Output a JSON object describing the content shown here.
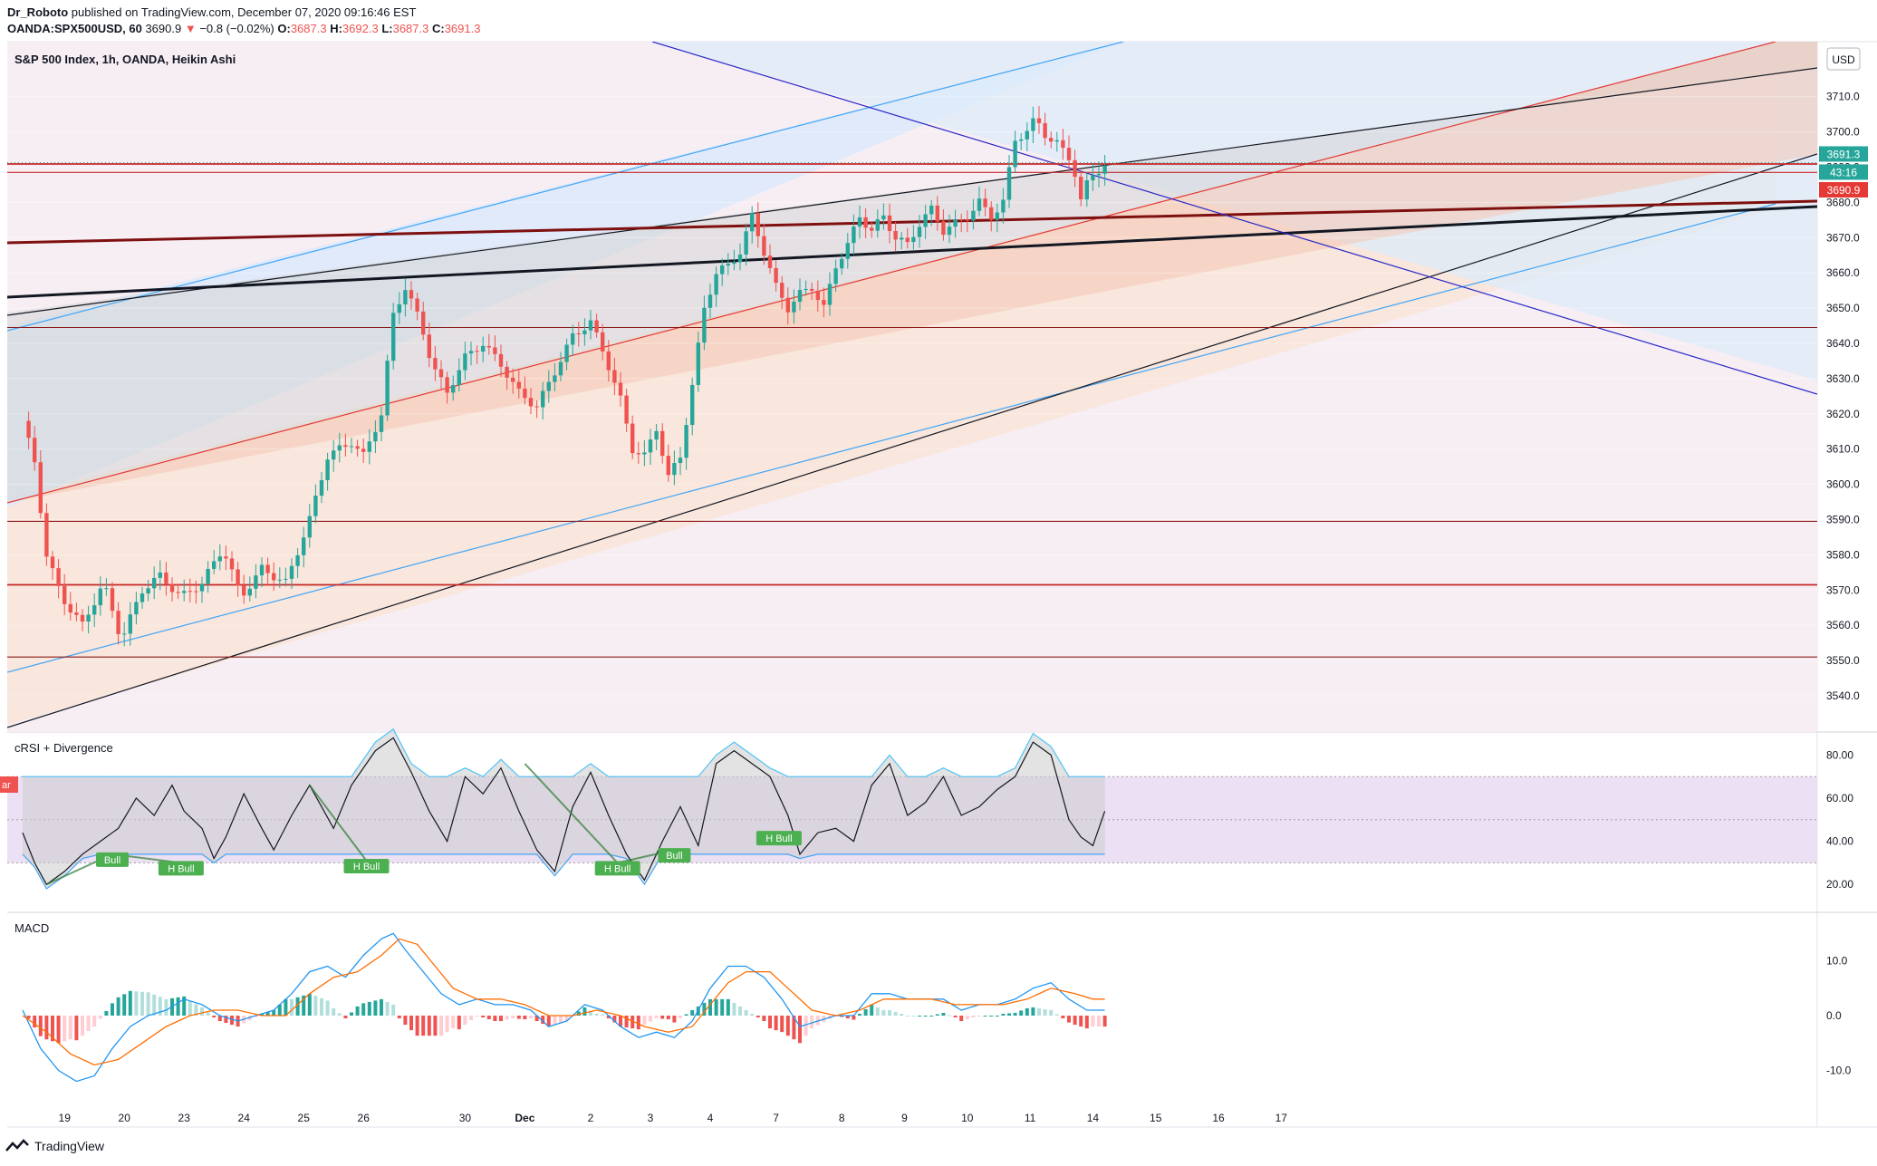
{
  "header": {
    "author": "Dr_Roboto",
    "published_text": "published on TradingView.com, December 07, 2020 09:16:46 EST",
    "symbol": "OANDA:SPX500USD, 60",
    "price": "3690.9",
    "change": "−0.8 (−0.02%)",
    "o_label": "O:",
    "o_value": "3687.3",
    "h_label": "H:",
    "h_value": "3692.3",
    "l_label": "L:",
    "l_value": "3687.3",
    "c_label": "C:",
    "c_value": "3691.3"
  },
  "main_pane": {
    "legend": "S&P 500 Index, 1h, OANDA, Heikin Ashi",
    "currency": "USD",
    "price_tags": [
      {
        "text": "3691.3",
        "color": "#26a69a"
      },
      {
        "text": "43:16",
        "color": "#26a69a"
      },
      {
        "text": "3690.9",
        "color": "#e53935"
      }
    ]
  },
  "crsi_pane": {
    "legend": "cRSI + Divergence",
    "left_tag": "ar",
    "labels": [
      "Bull",
      "H Bull",
      "H Bull",
      "H Bull",
      "Bull",
      "H Bull"
    ]
  },
  "macd_pane": {
    "legend": "MACD"
  },
  "footer": {
    "brand": "TradingView"
  },
  "colors": {
    "up": "#26a69a",
    "down": "#ef5350",
    "red_level": "#c62828",
    "dark_red": "#7f1010",
    "blue_line": "#2828c8",
    "light_blue": "#42a5f5",
    "macd_line": "#2196f3",
    "signal_line": "#ff6d00"
  },
  "chart_data": [
    {
      "type": "candlestick",
      "title": "S&P 500 Index, 1h, OANDA, Heikin Ashi",
      "x_ticks": [
        "19",
        "20",
        "23",
        "24",
        "25",
        "26",
        "30",
        "Dec",
        "2",
        "3",
        "4",
        "7",
        "8",
        "9",
        "10",
        "11",
        "14",
        "15",
        "16",
        "17"
      ],
      "y_ticks": [
        3540,
        3550,
        3560,
        3570,
        3580,
        3590,
        3600,
        3610,
        3620,
        3630,
        3640,
        3650,
        3660,
        3670,
        3680,
        3690,
        3700,
        3710
      ],
      "ylim": [
        3530,
        3720
      ],
      "horizontal_levels": [
        3690.9,
        3688.5,
        3644.5,
        3589.5,
        3571.5,
        3551.0
      ],
      "path_points": [
        [
          0,
          3618
        ],
        [
          0.4,
          3606
        ],
        [
          0.8,
          3580
        ],
        [
          1.3,
          3568
        ],
        [
          2,
          3560
        ],
        [
          2.7,
          3572
        ],
        [
          3.3,
          3556
        ],
        [
          4,
          3570
        ],
        [
          4.6,
          3574
        ],
        [
          5.3,
          3568
        ],
        [
          6,
          3572
        ],
        [
          6.7,
          3582
        ],
        [
          7.3,
          3568
        ],
        [
          8,
          3576
        ],
        [
          8.8,
          3572
        ],
        [
          9.6,
          3590
        ],
        [
          10.2,
          3608
        ],
        [
          11,
          3612
        ],
        [
          11.4,
          3608
        ],
        [
          12,
          3620
        ],
        [
          12.4,
          3648
        ],
        [
          12.8,
          3656
        ],
        [
          13.3,
          3646
        ],
        [
          13.7,
          3634
        ],
        [
          14.2,
          3626
        ],
        [
          14.8,
          3636
        ],
        [
          15.4,
          3640
        ],
        [
          16,
          3634
        ],
        [
          16.6,
          3626
        ],
        [
          17.2,
          3622
        ],
        [
          17.8,
          3632
        ],
        [
          18.4,
          3642
        ],
        [
          19,
          3646
        ],
        [
          19.5,
          3636
        ],
        [
          20,
          3624
        ],
        [
          20.4,
          3610
        ],
        [
          20.8,
          3608
        ],
        [
          21.2,
          3616
        ],
        [
          21.6,
          3602
        ],
        [
          22,
          3608
        ],
        [
          22.4,
          3628
        ],
        [
          22.8,
          3650
        ],
        [
          23.2,
          3660
        ],
        [
          23.6,
          3662
        ],
        [
          24,
          3666
        ],
        [
          24.4,
          3676
        ],
        [
          24.8,
          3666
        ],
        [
          25.2,
          3656
        ],
        [
          25.6,
          3650
        ],
        [
          26,
          3654
        ],
        [
          26.4,
          3656
        ],
        [
          26.8,
          3650
        ],
        [
          27.2,
          3662
        ],
        [
          27.6,
          3668
        ],
        [
          28,
          3676
        ],
        [
          28.4,
          3672
        ],
        [
          28.8,
          3676
        ],
        [
          29.2,
          3670
        ],
        [
          29.6,
          3668
        ],
        [
          30,
          3674
        ],
        [
          30.4,
          3678
        ],
        [
          30.8,
          3672
        ],
        [
          31.2,
          3674
        ],
        [
          31.6,
          3676
        ],
        [
          32,
          3680
        ],
        [
          32.4,
          3676
        ],
        [
          32.8,
          3680
        ],
        [
          33.2,
          3698
        ],
        [
          33.6,
          3700
        ],
        [
          33.9,
          3704
        ],
        [
          34.3,
          3698
        ],
        [
          34.7,
          3696
        ],
        [
          35.1,
          3692
        ],
        [
          35.4,
          3680
        ],
        [
          35.7,
          3688
        ],
        [
          36.2,
          3690
        ]
      ]
    },
    {
      "type": "line",
      "title": "cRSI + Divergence",
      "y_ticks": [
        20,
        40,
        60,
        80
      ],
      "ylim": [
        10,
        92
      ],
      "band": [
        30,
        70
      ],
      "midline": 50,
      "series": [],
      "crsi_points": [
        [
          0,
          44
        ],
        [
          0.4,
          30
        ],
        [
          0.8,
          20
        ],
        [
          1.4,
          26
        ],
        [
          2,
          34
        ],
        [
          2.6,
          40
        ],
        [
          3.2,
          46
        ],
        [
          3.8,
          60
        ],
        [
          4.4,
          52
        ],
        [
          5,
          66
        ],
        [
          5.4,
          54
        ],
        [
          6,
          46
        ],
        [
          6.4,
          32
        ],
        [
          6.8,
          42
        ],
        [
          7.4,
          62
        ],
        [
          8,
          46
        ],
        [
          8.4,
          36
        ],
        [
          9,
          52
        ],
        [
          9.6,
          66
        ],
        [
          10.4,
          46
        ],
        [
          11,
          66
        ],
        [
          11.8,
          82
        ],
        [
          12.4,
          88
        ],
        [
          13,
          72
        ],
        [
          13.6,
          54
        ],
        [
          14.2,
          40
        ],
        [
          14.8,
          70
        ],
        [
          15.4,
          62
        ],
        [
          16,
          74
        ],
        [
          16.6,
          54
        ],
        [
          17.2,
          36
        ],
        [
          17.8,
          26
        ],
        [
          18.4,
          56
        ],
        [
          19,
          72
        ],
        [
          19.6,
          52
        ],
        [
          20.2,
          34
        ],
        [
          20.8,
          22
        ],
        [
          21.4,
          40
        ],
        [
          22,
          56
        ],
        [
          22.6,
          38
        ],
        [
          23.2,
          76
        ],
        [
          23.8,
          82
        ],
        [
          24.4,
          76
        ],
        [
          25,
          70
        ],
        [
          25.6,
          52
        ],
        [
          26,
          34
        ],
        [
          26.6,
          44
        ],
        [
          27.2,
          46
        ],
        [
          27.8,
          40
        ],
        [
          28.4,
          66
        ],
        [
          29,
          76
        ],
        [
          29.6,
          52
        ],
        [
          30.2,
          58
        ],
        [
          30.8,
          70
        ],
        [
          31.4,
          52
        ],
        [
          32,
          56
        ],
        [
          32.6,
          64
        ],
        [
          33.2,
          70
        ],
        [
          33.8,
          86
        ],
        [
          34.4,
          80
        ],
        [
          35,
          50
        ],
        [
          35.4,
          42
        ],
        [
          35.8,
          38
        ],
        [
          36.2,
          54
        ]
      ]
    },
    {
      "type": "line",
      "title": "MACD",
      "y_ticks": [
        -10.0,
        0.0,
        10.0
      ],
      "ylim": [
        -15,
        17
      ],
      "series": [],
      "macd_points": [
        [
          0,
          1
        ],
        [
          0.6,
          -6
        ],
        [
          1.2,
          -10
        ],
        [
          1.8,
          -12
        ],
        [
          2.4,
          -11
        ],
        [
          3,
          -6
        ],
        [
          3.6,
          -2
        ],
        [
          4.2,
          0
        ],
        [
          4.8,
          1
        ],
        [
          5.4,
          3
        ],
        [
          6,
          2
        ],
        [
          6.6,
          0
        ],
        [
          7.2,
          -1
        ],
        [
          7.8,
          0
        ],
        [
          8.4,
          1
        ],
        [
          9,
          4
        ],
        [
          9.6,
          8
        ],
        [
          10.2,
          9
        ],
        [
          10.8,
          7
        ],
        [
          11.4,
          11
        ],
        [
          12,
          14
        ],
        [
          12.4,
          15
        ],
        [
          12.8,
          12
        ],
        [
          13.4,
          8
        ],
        [
          14,
          4
        ],
        [
          14.6,
          2
        ],
        [
          15.2,
          3
        ],
        [
          15.8,
          2
        ],
        [
          16.4,
          2
        ],
        [
          17,
          1
        ],
        [
          17.6,
          -2
        ],
        [
          18.2,
          -1
        ],
        [
          18.8,
          2
        ],
        [
          19.4,
          1
        ],
        [
          20,
          -2
        ],
        [
          20.6,
          -4
        ],
        [
          21.2,
          -3
        ],
        [
          21.8,
          -4
        ],
        [
          22.4,
          -1
        ],
        [
          23,
          5
        ],
        [
          23.6,
          9
        ],
        [
          24.2,
          9
        ],
        [
          24.8,
          7
        ],
        [
          25.4,
          3
        ],
        [
          26,
          -2
        ],
        [
          26.6,
          -1
        ],
        [
          27.2,
          0
        ],
        [
          27.8,
          0
        ],
        [
          28.4,
          4
        ],
        [
          29,
          4
        ],
        [
          29.6,
          3
        ],
        [
          30.2,
          3
        ],
        [
          30.8,
          3
        ],
        [
          31.4,
          1
        ],
        [
          32,
          2
        ],
        [
          32.6,
          2
        ],
        [
          33.2,
          3
        ],
        [
          33.8,
          5
        ],
        [
          34.4,
          6
        ],
        [
          35,
          3
        ],
        [
          35.6,
          1
        ],
        [
          36.2,
          1
        ]
      ],
      "signal_points": [
        [
          0,
          0
        ],
        [
          0.8,
          -3
        ],
        [
          1.6,
          -7
        ],
        [
          2.4,
          -9
        ],
        [
          3.2,
          -8
        ],
        [
          4,
          -5
        ],
        [
          4.8,
          -2
        ],
        [
          5.6,
          0
        ],
        [
          6.4,
          1
        ],
        [
          7.2,
          1
        ],
        [
          8,
          0
        ],
        [
          8.8,
          0
        ],
        [
          9.6,
          4
        ],
        [
          10.4,
          7
        ],
        [
          11.2,
          8
        ],
        [
          12,
          11
        ],
        [
          12.6,
          14
        ],
        [
          13.2,
          13
        ],
        [
          13.8,
          9
        ],
        [
          14.4,
          5
        ],
        [
          15.2,
          3
        ],
        [
          16,
          3
        ],
        [
          16.8,
          2
        ],
        [
          17.6,
          0
        ],
        [
          18.4,
          0
        ],
        [
          19.2,
          1
        ],
        [
          20,
          0
        ],
        [
          20.8,
          -2
        ],
        [
          21.6,
          -3
        ],
        [
          22.4,
          -2
        ],
        [
          23,
          2
        ],
        [
          23.6,
          6
        ],
        [
          24.2,
          8
        ],
        [
          25,
          8
        ],
        [
          25.6,
          5
        ],
        [
          26.4,
          1
        ],
        [
          27.2,
          0
        ],
        [
          28,
          1
        ],
        [
          28.8,
          3
        ],
        [
          29.6,
          3
        ],
        [
          30.4,
          3
        ],
        [
          31.2,
          2
        ],
        [
          32,
          2
        ],
        [
          32.8,
          2
        ],
        [
          33.6,
          3
        ],
        [
          34.4,
          5
        ],
        [
          35.2,
          4
        ],
        [
          35.8,
          3
        ],
        [
          36.2,
          3
        ]
      ]
    }
  ]
}
